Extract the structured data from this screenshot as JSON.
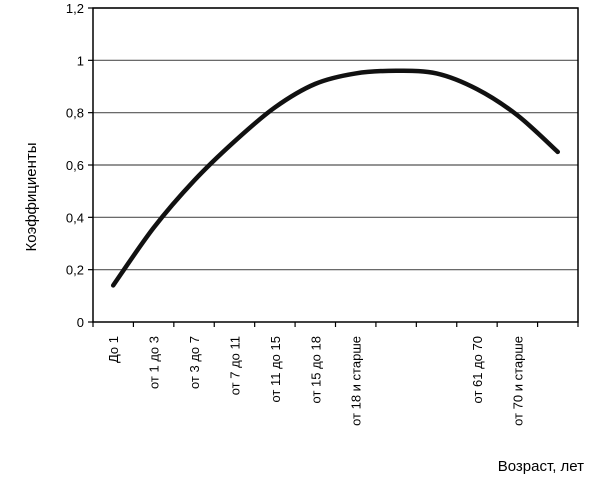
{
  "chart_data": {
    "type": "line",
    "ylabel": "Коэффициенты",
    "xlabel": "Возраст, лет",
    "ylim": [
      0,
      1.2
    ],
    "yticks": [
      0,
      0.2,
      0.4,
      0.6,
      0.8,
      1,
      1.2
    ],
    "ytick_labels": [
      "0",
      "0,2",
      "0,4",
      "0,6",
      "0,8",
      "1",
      "1,2"
    ],
    "grid": true,
    "categories": [
      "До 1",
      "от 1 до 3",
      "от 3 до 7",
      "от 7 до 11",
      "от 11 до 15",
      "от 15 до 18",
      "от 18 и старше",
      "",
      "",
      "от 61 до 70",
      "от 70 и старше",
      ""
    ],
    "series": [
      {
        "values": [
          0.14,
          0.36,
          0.54,
          0.69,
          0.82,
          0.91,
          0.95,
          0.96,
          0.95,
          0.89,
          0.79,
          0.65
        ]
      }
    ],
    "colors": {
      "line": "#111111",
      "grid": "#555555",
      "axis": "#000000"
    }
  }
}
